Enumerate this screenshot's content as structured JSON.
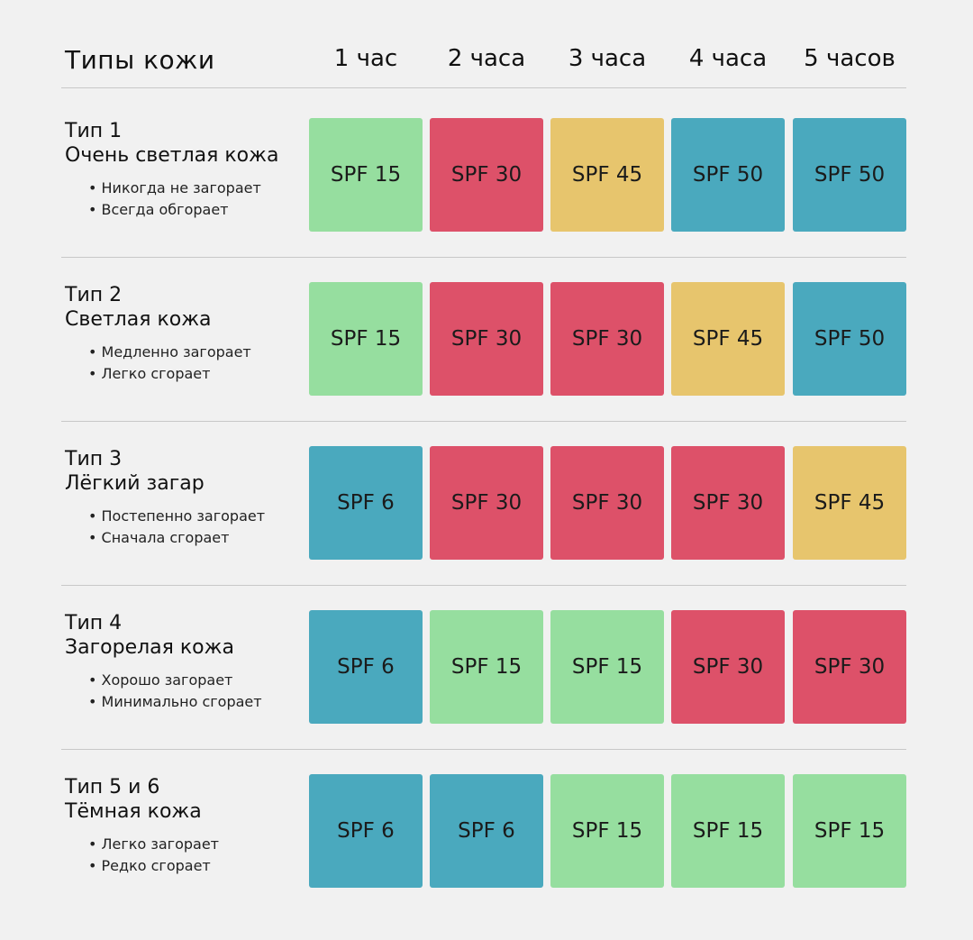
{
  "chart_data": {
    "type": "table",
    "header": {
      "skin_label": "Типы кожи",
      "hours": [
        "1 час",
        "2 часа",
        "3 часа",
        "4 часа",
        "5 часов"
      ]
    },
    "colors": {
      "SPF 6": "#4aa9be",
      "SPF 15": "#96de9f",
      "SPF 30": "#dd5169",
      "SPF 45": "#e7c56d",
      "SPF 50": "#4aa9be"
    },
    "rows": [
      {
        "title": [
          "Тип 1",
          "Очень светлая кожа"
        ],
        "bullets": [
          "• Никогда не загорает",
          "• Всегда обгорает"
        ],
        "values": [
          "SPF 15",
          "SPF 30",
          "SPF 45",
          "SPF 50",
          "SPF 50"
        ]
      },
      {
        "title": [
          "Тип 2",
          "Светлая кожа"
        ],
        "bullets": [
          "• Медленно загорает",
          "• Легко сгорает"
        ],
        "values": [
          "SPF 15",
          "SPF 30",
          "SPF 30",
          "SPF 45",
          "SPF 50"
        ]
      },
      {
        "title": [
          "Тип 3",
          "Лёгкий загар"
        ],
        "bullets": [
          "• Постепенно загорает",
          "• Сначала сгорает"
        ],
        "values": [
          "SPF 6",
          "SPF 30",
          "SPF 30",
          "SPF 30",
          "SPF 45"
        ]
      },
      {
        "title": [
          "Тип 4",
          "Загорелая кожа"
        ],
        "bullets": [
          "• Хорошо загорает",
          "• Минимально сгорает"
        ],
        "values": [
          "SPF 6",
          "SPF 15",
          "SPF 15",
          "SPF 30",
          "SPF 30"
        ]
      },
      {
        "title": [
          "Тип 5 и 6",
          "Тёмная кожа"
        ],
        "bullets": [
          "• Легко загорает",
          "• Редко сгорает"
        ],
        "values": [
          "SPF 6",
          "SPF 6",
          "SPF 15",
          "SPF 15",
          "SPF 15"
        ]
      }
    ]
  }
}
